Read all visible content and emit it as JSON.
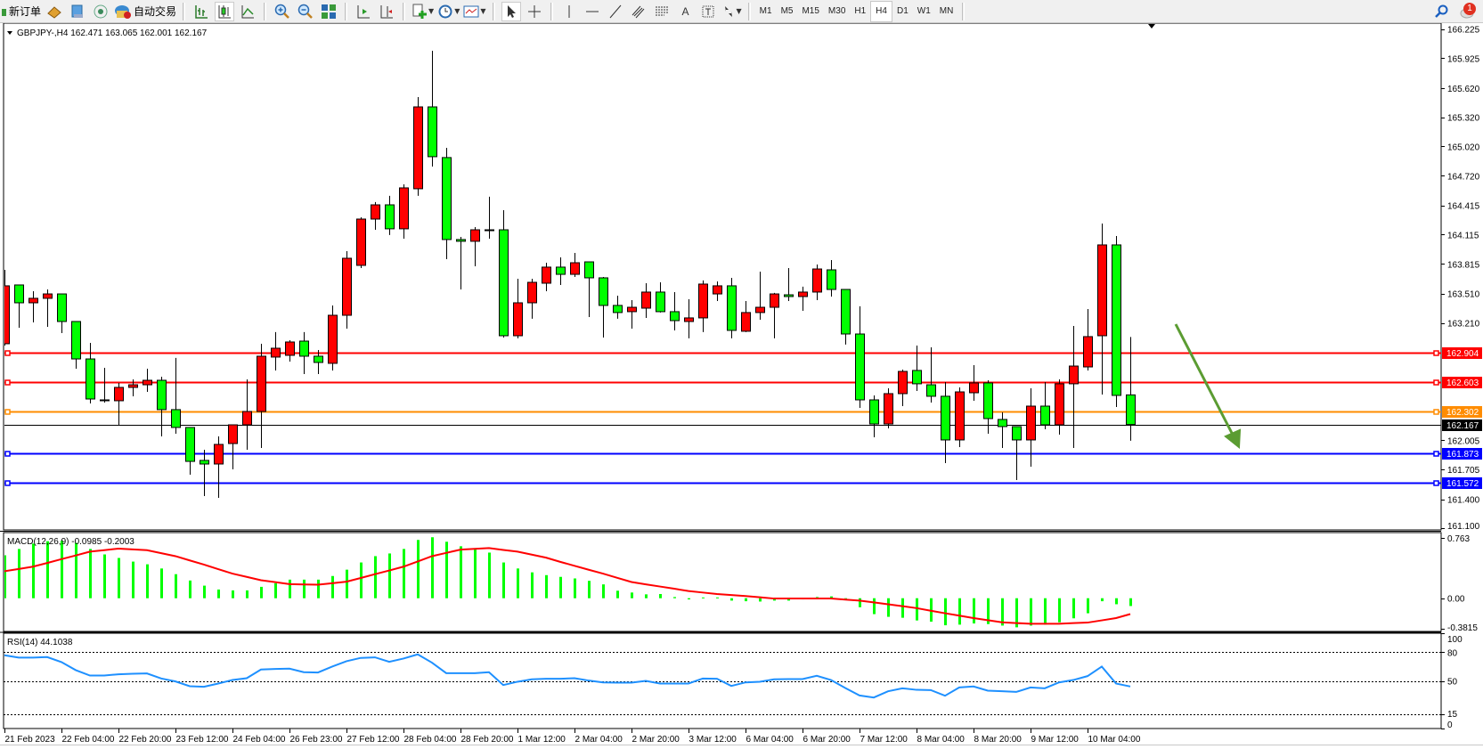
{
  "toolbar": {
    "new_order": "新订单",
    "auto_trading": "自动交易",
    "text_tool": "A",
    "timeframes": [
      "M1",
      "M5",
      "M15",
      "M30",
      "H1",
      "H4",
      "D1",
      "W1",
      "MN"
    ],
    "active_timeframe": "H4",
    "notification_count": "1"
  },
  "chart_data": {
    "type": "candlestick",
    "title": "GBPJPY-,H4  162.471 163.065 162.001 162.167",
    "bull_color": "#ff0000",
    "bear_color": "#00ff00",
    "ylim": [
      161.095,
      166.285
    ],
    "price_ticks": [
      "166.225",
      "165.925",
      "165.620",
      "165.320",
      "165.020",
      "164.720",
      "164.415",
      "164.115",
      "163.815",
      "163.510",
      "163.210",
      "162.005",
      "161.705",
      "161.400",
      "161.100"
    ],
    "levels": [
      {
        "price": "162.904",
        "color": "#ff0000"
      },
      {
        "price": "162.603",
        "color": "#ff0000"
      },
      {
        "price": "162.302",
        "color": "#ff8c00"
      },
      {
        "price": "162.167",
        "color": "#000000"
      },
      {
        "price": "161.873",
        "color": "#0000ff"
      },
      {
        "price": "161.572",
        "color": "#0000ff"
      }
    ],
    "arrow_color": "#5b9c32",
    "time_labels": [
      "21 Feb 2023",
      "22 Feb 04:00",
      "22 Feb 20:00",
      "23 Feb 12:00",
      "24 Feb 04:00",
      "26 Feb 23:00",
      "27 Feb 12:00",
      "28 Feb 04:00",
      "28 Feb 20:00",
      "1 Mar 12:00",
      "2 Mar 04:00",
      "2 Mar 20:00",
      "3 Mar 12:00",
      "6 Mar 04:00",
      "6 Mar 20:00",
      "7 Mar 12:00",
      "8 Mar 04:00",
      "8 Mar 20:00",
      "9 Mar 12:00",
      "10 Mar 04:00"
    ],
    "ohlc_fields": [
      "open",
      "high",
      "low",
      "close"
    ],
    "candles": [
      [
        162.996,
        163.754,
        162.977,
        163.59
      ],
      [
        163.599,
        163.599,
        163.16,
        163.416
      ],
      [
        163.416,
        163.535,
        163.215,
        163.462
      ],
      [
        163.462,
        163.553,
        163.169,
        163.507
      ],
      [
        163.507,
        163.507,
        163.105,
        163.224
      ],
      [
        163.224,
        163.224,
        162.74,
        162.84
      ],
      [
        162.84,
        163.005,
        162.383,
        162.429
      ],
      [
        162.42,
        162.749,
        162.393,
        162.42
      ],
      [
        162.411,
        162.594,
        162.155,
        162.548
      ],
      [
        162.548,
        162.63,
        162.457,
        162.575
      ],
      [
        162.575,
        162.74,
        162.502,
        162.621
      ],
      [
        162.621,
        162.658,
        162.045,
        162.32
      ],
      [
        162.32,
        162.85,
        162.073,
        162.137
      ],
      [
        162.137,
        162.137,
        161.652,
        161.789
      ],
      [
        161.799,
        161.908,
        161.433,
        161.762
      ],
      [
        161.762,
        162.045,
        161.415,
        161.963
      ],
      [
        161.972,
        162.164,
        161.707,
        162.164
      ],
      [
        162.164,
        162.63,
        161.908,
        162.301
      ],
      [
        162.301,
        162.996,
        161.927,
        162.868
      ],
      [
        162.859,
        163.115,
        162.722,
        162.95
      ],
      [
        162.877,
        163.032,
        162.813,
        163.014
      ],
      [
        163.023,
        163.115,
        162.685,
        162.868
      ],
      [
        162.868,
        162.932,
        162.685,
        162.804
      ],
      [
        162.795,
        163.389,
        162.722,
        163.288
      ],
      [
        163.288,
        163.946,
        163.151,
        163.873
      ],
      [
        163.8,
        164.293,
        163.772,
        164.275
      ],
      [
        164.275,
        164.449,
        164.165,
        164.421
      ],
      [
        164.421,
        164.513,
        164.111,
        164.175
      ],
      [
        164.175,
        164.631,
        164.074,
        164.595
      ],
      [
        164.586,
        165.527,
        164.513,
        165.426
      ],
      [
        165.426,
        166.002,
        164.814,
        164.915
      ],
      [
        164.906,
        165.006,
        163.864,
        164.065
      ],
      [
        164.065,
        164.092,
        163.553,
        164.047
      ],
      [
        164.047,
        164.193,
        163.791,
        164.165
      ],
      [
        164.165,
        164.504,
        164.074,
        164.165
      ],
      [
        164.165,
        164.366,
        163.06,
        163.078
      ],
      [
        163.078,
        163.663,
        163.051,
        163.416
      ],
      [
        163.416,
        163.663,
        163.252,
        163.626
      ],
      [
        163.617,
        163.827,
        163.535,
        163.782
      ],
      [
        163.782,
        163.882,
        163.599,
        163.708
      ],
      [
        163.708,
        163.928,
        163.681,
        163.827
      ],
      [
        163.836,
        163.836,
        163.27,
        163.672
      ],
      [
        163.672,
        163.681,
        163.06,
        163.389
      ],
      [
        163.389,
        163.489,
        163.252,
        163.316
      ],
      [
        163.325,
        163.443,
        163.151,
        163.37
      ],
      [
        163.361,
        163.617,
        163.261,
        163.526
      ],
      [
        163.526,
        163.626,
        163.316,
        163.325
      ],
      [
        163.325,
        163.526,
        163.133,
        163.233
      ],
      [
        163.224,
        163.453,
        163.051,
        163.261
      ],
      [
        163.261,
        163.645,
        163.115,
        163.608
      ],
      [
        163.507,
        163.635,
        163.434,
        163.59
      ],
      [
        163.59,
        163.672,
        163.051,
        163.133
      ],
      [
        163.124,
        163.434,
        163.115,
        163.316
      ],
      [
        163.316,
        163.736,
        163.242,
        163.37
      ],
      [
        163.37,
        163.517,
        163.051,
        163.507
      ],
      [
        163.498,
        163.772,
        163.434,
        163.48
      ],
      [
        163.48,
        163.581,
        163.334,
        163.526
      ],
      [
        163.526,
        163.809,
        163.443,
        163.763
      ],
      [
        163.754,
        163.855,
        163.48,
        163.553
      ],
      [
        163.553,
        163.553,
        162.987,
        163.096
      ],
      [
        163.096,
        163.38,
        162.338,
        162.42
      ],
      [
        162.42,
        162.466,
        162.036,
        162.173
      ],
      [
        162.173,
        162.539,
        162.128,
        162.484
      ],
      [
        162.484,
        162.731,
        162.356,
        162.712
      ],
      [
        162.722,
        162.977,
        162.511,
        162.585
      ],
      [
        162.575,
        162.959,
        162.393,
        162.457
      ],
      [
        162.457,
        162.603,
        161.771,
        162.009
      ],
      [
        162.009,
        162.548,
        161.936,
        162.502
      ],
      [
        162.493,
        162.776,
        162.411,
        162.594
      ],
      [
        162.594,
        162.621,
        162.073,
        162.228
      ],
      [
        162.219,
        162.292,
        161.927,
        162.146
      ],
      [
        162.146,
        162.146,
        161.598,
        162.009
      ],
      [
        162.009,
        162.539,
        161.735,
        162.356
      ],
      [
        162.356,
        162.603,
        162.118,
        162.164
      ],
      [
        162.164,
        162.63,
        162.064,
        162.585
      ],
      [
        162.585,
        163.178,
        161.927,
        162.767
      ],
      [
        162.758,
        163.352,
        162.722,
        163.069
      ],
      [
        163.078,
        164.229,
        162.475,
        164.01
      ],
      [
        164.01,
        164.101,
        162.347,
        162.466
      ],
      [
        162.471,
        163.065,
        162.001,
        162.167
      ]
    ],
    "macd": {
      "label": "MACD(12,26,9) -0.0985 -0.2003",
      "axis_labels": [
        "0.763",
        "0.00",
        "-0.3815"
      ],
      "ylim": [
        -0.42,
        0.83
      ],
      "main": [
        0.543,
        0.623,
        0.691,
        0.721,
        0.729,
        0.699,
        0.623,
        0.554,
        0.509,
        0.463,
        0.429,
        0.376,
        0.304,
        0.224,
        0.159,
        0.11,
        0.099,
        0.099,
        0.144,
        0.19,
        0.235,
        0.235,
        0.235,
        0.281,
        0.361,
        0.452,
        0.532,
        0.566,
        0.623,
        0.737,
        0.771,
        0.714,
        0.657,
        0.623,
        0.577,
        0.452,
        0.376,
        0.327,
        0.292,
        0.27,
        0.25,
        0.22,
        0.175,
        0.095,
        0.072,
        0.049,
        0.053,
        0.015,
        -0.015,
        0.01,
        0.01,
        -0.03,
        -0.038,
        -0.042,
        -0.03,
        -0.03,
        -0.015,
        0.015,
        0.023,
        -0.011,
        -0.114,
        -0.201,
        -0.235,
        -0.247,
        -0.281,
        -0.296,
        -0.342,
        -0.334,
        -0.319,
        -0.327,
        -0.346,
        -0.368,
        -0.346,
        -0.334,
        -0.304,
        -0.254,
        -0.19,
        -0.038,
        -0.076,
        -0.0985
      ],
      "signal": [
        0.342,
        0.37,
        0.399,
        0.446,
        0.494,
        0.541,
        0.589,
        0.608,
        0.627,
        0.617,
        0.608,
        0.57,
        0.532,
        0.478,
        0.425,
        0.368,
        0.311,
        0.27,
        0.228,
        0.203,
        0.178,
        0.174,
        0.171,
        0.19,
        0.209,
        0.256,
        0.304,
        0.351,
        0.399,
        0.465,
        0.532,
        0.573,
        0.615,
        0.624,
        0.634,
        0.611,
        0.589,
        0.551,
        0.513,
        0.46,
        0.41,
        0.36,
        0.311,
        0.258,
        0.205,
        0.176,
        0.148,
        0.12,
        0.091,
        0.072,
        0.053,
        0.04,
        0.027,
        0.012,
        -0.004,
        -0.004,
        -0.004,
        -0.004,
        -0.004,
        -0.017,
        -0.03,
        -0.053,
        -0.076,
        -0.1,
        -0.125,
        -0.158,
        -0.19,
        -0.22,
        -0.251,
        -0.278,
        -0.304,
        -0.314,
        -0.323,
        -0.323,
        -0.323,
        -0.315,
        -0.308,
        -0.28,
        -0.251,
        -0.2003
      ],
      "hist_color": "#00ff00",
      "signal_color": "#ff0000"
    },
    "rsi": {
      "label": "RSI(14) 44.1038",
      "axis_labels": [
        "100",
        "80",
        "50",
        "15",
        "0"
      ],
      "levels": [
        80,
        50,
        15
      ],
      "ylim": [
        0,
        100
      ],
      "color": "#1e90ff",
      "values": [
        76.9,
        74.4,
        74.4,
        75,
        69.7,
        61.3,
        55.6,
        55.6,
        56.9,
        57.5,
        57.8,
        52.5,
        49.4,
        44.4,
        43.8,
        47.2,
        50.9,
        52.8,
        61.9,
        62.5,
        62.8,
        59.1,
        58.8,
        65,
        70.6,
        74.1,
        74.7,
        70,
        73.4,
        77.8,
        69.1,
        58.1,
        58.1,
        58.1,
        59.1,
        45.6,
        49.1,
        51.6,
        52.2,
        52.2,
        52.8,
        50.3,
        48.4,
        48.1,
        48.1,
        50,
        47.2,
        47.2,
        47.2,
        52.5,
        52.2,
        44.7,
        48.4,
        49.1,
        51.6,
        51.9,
        51.9,
        55.3,
        50.9,
        42.5,
        34.7,
        32.5,
        39.1,
        42.2,
        40.6,
        40.3,
        34.4,
        43.1,
        44.1,
        39.7,
        39.1,
        38.4,
        43.1,
        42.2,
        48.4,
        50.9,
        55,
        65,
        47.2,
        44.1038
      ]
    }
  }
}
